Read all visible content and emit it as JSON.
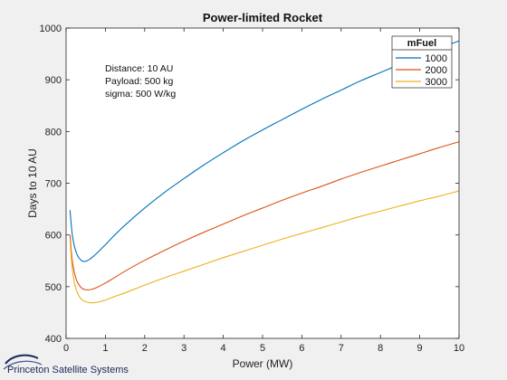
{
  "chart_data": {
    "type": "line",
    "title": "Power-limited Rocket",
    "xlabel": "Power (MW)",
    "ylabel": "Days to 10 AU",
    "xlim": [
      0,
      10
    ],
    "ylim": [
      400,
      1000
    ],
    "xticks": [
      0,
      1,
      2,
      3,
      4,
      5,
      6,
      7,
      8,
      9,
      10
    ],
    "yticks": [
      400,
      500,
      600,
      700,
      800,
      900,
      1000
    ],
    "grid": false,
    "legend": {
      "title": "mFuel",
      "placement": "top-right"
    },
    "annotations": [
      "Distance: 10 AU",
      "Payload: 500 kg",
      "sigma: 500 W/kg"
    ],
    "series": [
      {
        "name": "1000",
        "color": "#0072bd",
        "x": [
          0.1,
          0.15,
          0.2,
          0.25,
          0.3,
          0.4,
          0.5,
          0.6,
          0.7,
          0.8,
          1.0,
          1.2,
          1.5,
          2,
          2.5,
          3,
          3.5,
          4,
          4.5,
          5,
          5.5,
          6,
          6.5,
          7,
          7.5,
          8,
          8.5,
          9,
          9.5,
          10
        ],
        "y": [
          648,
          605,
          582,
          568,
          559,
          550,
          549,
          553,
          559,
          566,
          581,
          597,
          619,
          652,
          682,
          709,
          735,
          759,
          782,
          803,
          823,
          843,
          862,
          880,
          898,
          914,
          930,
          946,
          961,
          975
        ]
      },
      {
        "name": "2000",
        "color": "#d95319",
        "x": [
          0.1,
          0.15,
          0.2,
          0.25,
          0.3,
          0.4,
          0.5,
          0.6,
          0.7,
          0.8,
          1.0,
          1.2,
          1.5,
          2,
          2.5,
          3,
          3.5,
          4,
          4.5,
          5,
          5.5,
          6,
          6.5,
          7,
          7.5,
          8,
          8.5,
          9,
          9.5,
          10
        ],
        "y": [
          600,
          555,
          531,
          516,
          507,
          497,
          494,
          494,
          496,
          499,
          507,
          516,
          530,
          551,
          570,
          588,
          605,
          621,
          637,
          652,
          667,
          681,
          694,
          708,
          721,
          733,
          745,
          757,
          769,
          780
        ]
      },
      {
        "name": "3000",
        "color": "#edb120",
        "x": [
          0.1,
          0.15,
          0.2,
          0.25,
          0.3,
          0.4,
          0.5,
          0.6,
          0.7,
          0.8,
          1.0,
          1.2,
          1.5,
          2,
          2.5,
          3,
          3.5,
          4,
          4.5,
          5,
          5.5,
          6,
          6.5,
          7,
          7.5,
          8,
          8.5,
          9,
          9.5,
          10
        ],
        "y": [
          590,
          540,
          512,
          496,
          486,
          475,
          471,
          469,
          469,
          470,
          474,
          480,
          488,
          503,
          517,
          530,
          543,
          556,
          568,
          580,
          592,
          603,
          614,
          625,
          636,
          646,
          656,
          666,
          675,
          685
        ]
      }
    ]
  },
  "footer": {
    "logo_text": "Princeton Satellite Systems"
  }
}
